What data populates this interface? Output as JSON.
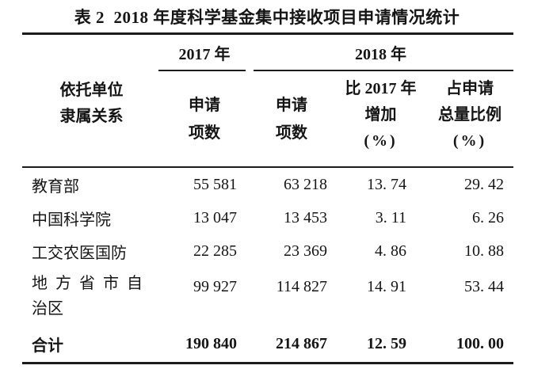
{
  "title": "表 2  2018 年度科学基金集中接收项目申请情况统计",
  "table": {
    "group_headers": {
      "y2017": "2017 年",
      "y2018": "2018 年"
    },
    "row_header": {
      "lines": [
        "依托单位",
        "隶属关系"
      ]
    },
    "columns": [
      {
        "id": "apps_2017",
        "lines": [
          "申请",
          "项数"
        ]
      },
      {
        "id": "apps_2018",
        "lines": [
          "申请",
          "项数"
        ]
      },
      {
        "id": "increase_vs_2017",
        "lines": [
          "比 2017 年",
          "增加",
          "(%)"
        ]
      },
      {
        "id": "share_of_total",
        "lines": [
          "占申请",
          "总量比例",
          "(%)"
        ]
      }
    ],
    "rows": [
      {
        "org_lines": [
          "教育部"
        ],
        "apps_2017": "55 581",
        "apps_2018": "63 218",
        "increase_pct": "13. 74",
        "share_pct": "29. 42",
        "bold": false
      },
      {
        "org_lines": [
          "中国科学院"
        ],
        "apps_2017": "13 047",
        "apps_2018": "13 453",
        "increase_pct": "3. 11",
        "share_pct": "6. 26",
        "bold": false
      },
      {
        "org_lines": [
          "工交农医国防"
        ],
        "apps_2017": "22 285",
        "apps_2018": "23 369",
        "increase_pct": "4. 86",
        "share_pct": "10. 88",
        "bold": false
      },
      {
        "org_lines": [
          "地方省市自",
          "治区"
        ],
        "apps_2017": "99 927",
        "apps_2018": "114 827",
        "increase_pct": "14. 91",
        "share_pct": "53. 44",
        "bold": false
      },
      {
        "org_lines": [
          "合计"
        ],
        "apps_2017": "190 840",
        "apps_2018": "214 867",
        "increase_pct": "12. 59",
        "share_pct": "100. 00",
        "bold": true
      }
    ]
  },
  "colors": {
    "background": "#ffffff",
    "text": "#151515",
    "rule": "#1c1c1c"
  }
}
